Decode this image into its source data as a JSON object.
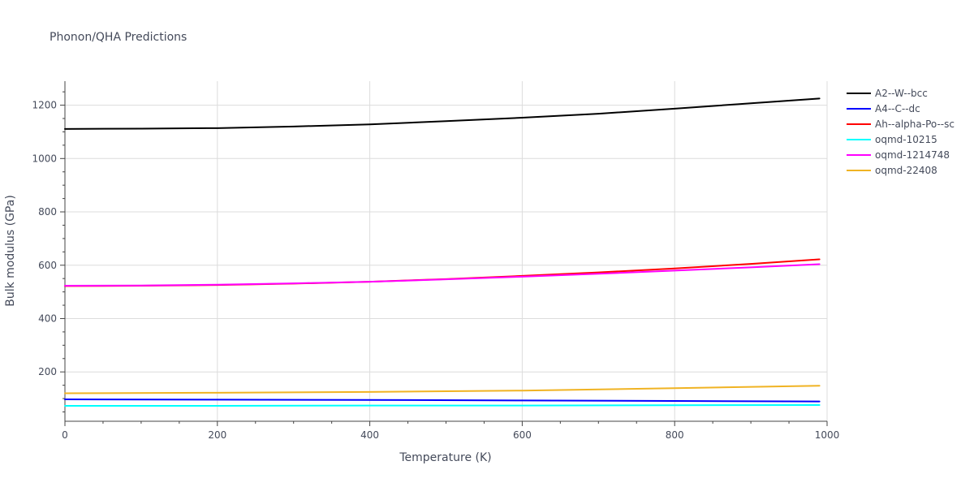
{
  "chart_data": {
    "type": "line",
    "title": "Phonon/QHA Predictions",
    "xlabel": "Temperature (K)",
    "ylabel": "Bulk modulus (GPa)",
    "xlim": [
      0,
      1000
    ],
    "ylim": [
      15,
      1290
    ],
    "xticks": [
      0,
      200,
      400,
      600,
      800,
      1000
    ],
    "yticks": [
      200,
      400,
      600,
      800,
      1000,
      1200
    ],
    "grid": true,
    "legend_position": "top-right",
    "series": [
      {
        "name": "A2--W--bcc",
        "color": "#000000",
        "x": [
          0,
          100,
          200,
          300,
          400,
          500,
          600,
          700,
          800,
          900,
          990
        ],
        "y": [
          1111,
          1112,
          1114,
          1120,
          1128,
          1140,
          1153,
          1168,
          1187,
          1207,
          1225
        ]
      },
      {
        "name": "A4--C--dc",
        "color": "#0000ff",
        "x": [
          0,
          200,
          400,
          600,
          800,
          990
        ],
        "y": [
          97,
          96,
          95,
          93,
          91,
          89
        ]
      },
      {
        "name": "Ah--alpha-Po--sc",
        "color": "#ff0000",
        "x": [
          0,
          100,
          200,
          300,
          400,
          500,
          600,
          700,
          800,
          900,
          990
        ],
        "y": [
          522,
          523,
          526,
          531,
          538,
          548,
          560,
          573,
          588,
          605,
          622
        ]
      },
      {
        "name": "oqmd-10215",
        "color": "#00ffff",
        "x": [
          0,
          200,
          400,
          600,
          800,
          990
        ],
        "y": [
          73,
          73,
          74,
          74,
          75,
          76
        ]
      },
      {
        "name": "oqmd-1214748",
        "color": "#ff00ff",
        "x": [
          0,
          100,
          200,
          300,
          400,
          500,
          600,
          700,
          800,
          900,
          990
        ],
        "y": [
          523,
          524,
          527,
          532,
          538,
          547,
          557,
          568,
          580,
          592,
          604
        ]
      },
      {
        "name": "oqmd-22408",
        "color": "#f0b323",
        "x": [
          0,
          200,
          400,
          600,
          800,
          990
        ],
        "y": [
          120,
          122,
          125,
          130,
          139,
          148
        ]
      }
    ]
  }
}
